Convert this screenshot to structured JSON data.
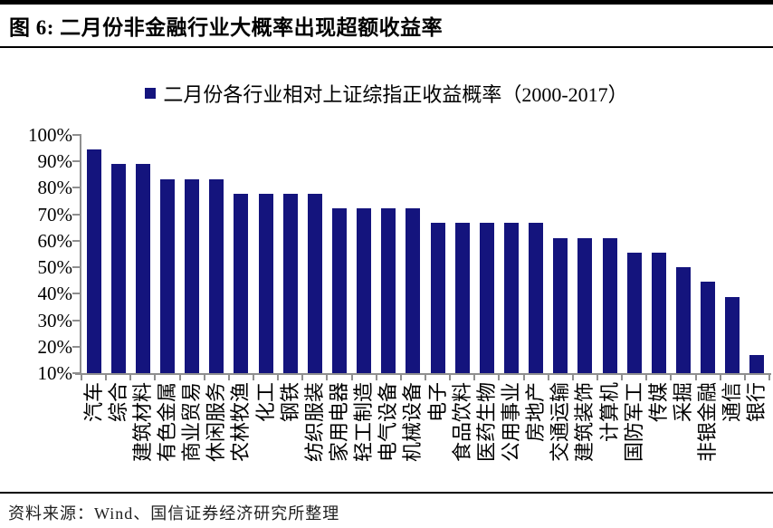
{
  "figure": {
    "title": "图 6:  二月份非金融行业大概率出现超额收益率",
    "source": "资料来源：Wind、国信证券经济研究所整理"
  },
  "legend": {
    "label": "二月份各行业相对上证综指正收益概率（2000-2017）"
  },
  "colors": {
    "bar": "#14147D",
    "axis": "#8F8F8F",
    "rule": "#000000"
  },
  "chart_data": {
    "type": "bar",
    "title": "二月份各行业相对上证综指正收益概率（2000-2017）",
    "categories": [
      "汽车",
      "综合",
      "建筑材料",
      "有色金属",
      "商业贸易",
      "休闲服务",
      "农林牧渔",
      "化工",
      "钢铁",
      "纺织服装",
      "家用电器",
      "轻工制造",
      "电气设备",
      "机械设备",
      "电子",
      "食品饮料",
      "医药生物",
      "公用事业",
      "房地产",
      "交通运输",
      "建筑装饰",
      "计算机",
      "国防军工",
      "传媒",
      "采掘",
      "非银金融",
      "通信",
      "银行"
    ],
    "values": [
      94.4,
      88.9,
      88.9,
      83.3,
      83.3,
      83.3,
      77.8,
      77.8,
      77.8,
      77.8,
      72.2,
      72.2,
      72.2,
      72.2,
      66.7,
      66.7,
      66.7,
      66.7,
      66.7,
      61.1,
      61.1,
      61.1,
      55.6,
      55.6,
      50.0,
      44.4,
      38.9,
      16.7
    ],
    "xlabel": "",
    "ylabel": "",
    "ylim": [
      10,
      100
    ],
    "yticks": [
      "100%",
      "90%",
      "80%",
      "70%",
      "60%",
      "50%",
      "40%",
      "30%",
      "20%",
      "10%"
    ],
    "grid": false,
    "legend_position": "top",
    "bar_color": "#14147D"
  }
}
